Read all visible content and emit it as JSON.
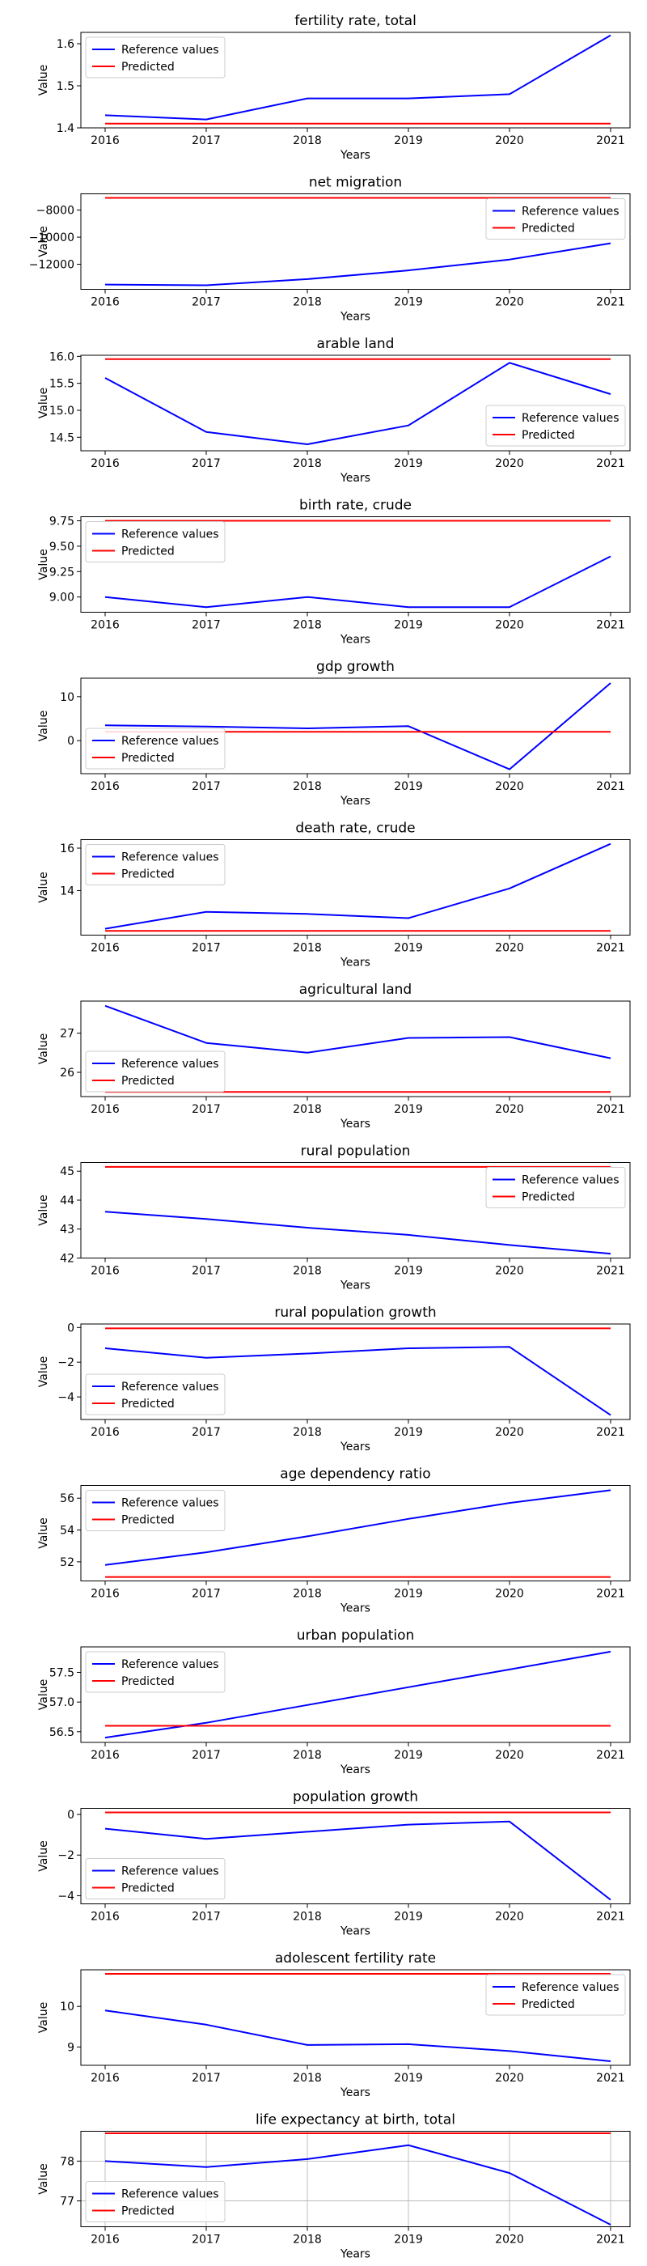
{
  "colors": {
    "reference": "#0000ff",
    "predicted": "#ff0000",
    "grid": "#b0b0b0"
  },
  "legend": {
    "reference_label": "Reference values",
    "predicted_label": "Predicted"
  },
  "chart_data": [
    {
      "type": "line",
      "title": "fertility rate, total",
      "xlabel": "Years",
      "ylabel": "Value",
      "x": [
        2016,
        2017,
        2018,
        2019,
        2020,
        2021
      ],
      "series": [
        {
          "name": "Reference values",
          "values": [
            1.43,
            1.42,
            1.47,
            1.47,
            1.48,
            1.62
          ]
        },
        {
          "name": "Predicted",
          "values": [
            1.41,
            1.41,
            1.41,
            1.41,
            1.41,
            1.41
          ]
        }
      ],
      "ylim": [
        1.4,
        1.627
      ],
      "yticks": [
        1.4,
        1.5,
        1.6
      ],
      "yticklabels": [
        "1.4",
        "1.5",
        "1.6"
      ],
      "legend_loc": "upper left",
      "grid": false
    },
    {
      "type": "line",
      "title": "net migration",
      "xlabel": "Years",
      "ylabel": "Value",
      "x": [
        2016,
        2017,
        2018,
        2019,
        2020,
        2021
      ],
      "series": [
        {
          "name": "Reference values",
          "values": [
            -13500,
            -13550,
            -13100,
            -12450,
            -11650,
            -10450
          ]
        },
        {
          "name": "Predicted",
          "values": [
            -7100,
            -7100,
            -7100,
            -7100,
            -7100,
            -7100
          ]
        }
      ],
      "ylim": [
        -13850,
        -6800
      ],
      "yticks": [
        -12000,
        -10000,
        -8000
      ],
      "yticklabels": [
        "−12000",
        "−10000",
        "−8000"
      ],
      "legend_loc": "upper right",
      "grid": false
    },
    {
      "type": "line",
      "title": "arable land",
      "xlabel": "Years",
      "ylabel": "Value",
      "x": [
        2016,
        2017,
        2018,
        2019,
        2020,
        2021
      ],
      "series": [
        {
          "name": "Reference values",
          "values": [
            15.6,
            14.6,
            14.37,
            14.72,
            15.88,
            15.3
          ]
        },
        {
          "name": "Predicted",
          "values": [
            15.95,
            15.95,
            15.95,
            15.95,
            15.95,
            15.95
          ]
        }
      ],
      "ylim": [
        14.25,
        16.02
      ],
      "yticks": [
        14.5,
        15.0,
        15.5,
        16.0
      ],
      "yticklabels": [
        "14.5",
        "15.0",
        "15.5",
        "16.0"
      ],
      "legend_loc": "lower right",
      "grid": false
    },
    {
      "type": "line",
      "title": "birth rate, crude",
      "xlabel": "Years",
      "ylabel": "Value",
      "x": [
        2016,
        2017,
        2018,
        2019,
        2020,
        2021
      ],
      "series": [
        {
          "name": "Reference values",
          "values": [
            9.0,
            8.9,
            9.0,
            8.9,
            8.9,
            9.4
          ]
        },
        {
          "name": "Predicted",
          "values": [
            9.75,
            9.75,
            9.75,
            9.75,
            9.75,
            9.75
          ]
        }
      ],
      "ylim": [
        8.85,
        9.79
      ],
      "yticks": [
        9.0,
        9.25,
        9.5,
        9.75
      ],
      "yticklabels": [
        "9.00",
        "9.25",
        "9.50",
        "9.75"
      ],
      "legend_loc": "upper left",
      "grid": false
    },
    {
      "type": "line",
      "title": "gdp growth",
      "xlabel": "Years",
      "ylabel": "Value",
      "x": [
        2016,
        2017,
        2018,
        2019,
        2020,
        2021
      ],
      "series": [
        {
          "name": "Reference values",
          "values": [
            3.5,
            3.2,
            2.8,
            3.3,
            -6.5,
            13.1
          ]
        },
        {
          "name": "Predicted",
          "values": [
            2.0,
            2.0,
            2.0,
            2.0,
            2.0,
            2.0
          ]
        }
      ],
      "ylim": [
        -7.5,
        14.2
      ],
      "yticks": [
        0,
        10
      ],
      "yticklabels": [
        "0",
        "10"
      ],
      "legend_loc": "lower left",
      "grid": false
    },
    {
      "type": "line",
      "title": "death rate, crude",
      "xlabel": "Years",
      "ylabel": "Value",
      "x": [
        2016,
        2017,
        2018,
        2019,
        2020,
        2021
      ],
      "series": [
        {
          "name": "Reference values",
          "values": [
            12.2,
            13.0,
            12.9,
            12.7,
            14.1,
            16.2
          ]
        },
        {
          "name": "Predicted",
          "values": [
            12.1,
            12.1,
            12.1,
            12.1,
            12.1,
            12.1
          ]
        }
      ],
      "ylim": [
        11.9,
        16.4
      ],
      "yticks": [
        14,
        16
      ],
      "yticklabels": [
        "14",
        "16"
      ],
      "legend_loc": "upper left",
      "grid": false
    },
    {
      "type": "line",
      "title": "agricultural land",
      "xlabel": "Years",
      "ylabel": "Value",
      "x": [
        2016,
        2017,
        2018,
        2019,
        2020,
        2021
      ],
      "series": [
        {
          "name": "Reference values",
          "values": [
            27.7,
            26.75,
            26.5,
            26.88,
            26.9,
            26.36
          ]
        },
        {
          "name": "Predicted",
          "values": [
            25.5,
            25.5,
            25.5,
            25.5,
            25.5,
            25.5
          ]
        }
      ],
      "ylim": [
        25.38,
        27.82
      ],
      "yticks": [
        26,
        27
      ],
      "yticklabels": [
        "26",
        "27"
      ],
      "legend_loc": "lower left",
      "grid": false
    },
    {
      "type": "line",
      "title": "rural population",
      "xlabel": "Years",
      "ylabel": "Value",
      "x": [
        2016,
        2017,
        2018,
        2019,
        2020,
        2021
      ],
      "series": [
        {
          "name": "Reference values",
          "values": [
            43.6,
            43.35,
            43.05,
            42.8,
            42.45,
            42.15
          ]
        },
        {
          "name": "Predicted",
          "values": [
            45.15,
            45.15,
            45.15,
            45.15,
            45.15,
            45.15
          ]
        }
      ],
      "ylim": [
        42.0,
        45.3
      ],
      "yticks": [
        42,
        43,
        44,
        45
      ],
      "yticklabels": [
        "42",
        "43",
        "44",
        "45"
      ],
      "legend_loc": "upper right",
      "grid": false
    },
    {
      "type": "line",
      "title": "rural population growth",
      "xlabel": "Years",
      "ylabel": "Value",
      "x": [
        2016,
        2017,
        2018,
        2019,
        2020,
        2021
      ],
      "series": [
        {
          "name": "Reference values",
          "values": [
            -1.2,
            -1.75,
            -1.5,
            -1.2,
            -1.12,
            -5.05
          ]
        },
        {
          "name": "Predicted",
          "values": [
            -0.05,
            -0.05,
            -0.05,
            -0.05,
            -0.05,
            -0.05
          ]
        }
      ],
      "ylim": [
        -5.3,
        0.2
      ],
      "yticks": [
        -4,
        -2,
        0
      ],
      "yticklabels": [
        "−4",
        "−2",
        "0"
      ],
      "legend_loc": "lower left",
      "grid": false
    },
    {
      "type": "line",
      "title": "age dependency ratio",
      "xlabel": "Years",
      "ylabel": "Value",
      "x": [
        2016,
        2017,
        2018,
        2019,
        2020,
        2021
      ],
      "series": [
        {
          "name": "Reference values",
          "values": [
            51.8,
            52.6,
            53.6,
            54.7,
            55.7,
            56.5
          ]
        },
        {
          "name": "Predicted",
          "values": [
            51.05,
            51.05,
            51.05,
            51.05,
            51.05,
            51.05
          ]
        }
      ],
      "ylim": [
        50.8,
        56.8
      ],
      "yticks": [
        52,
        54,
        56
      ],
      "yticklabels": [
        "52",
        "54",
        "56"
      ],
      "legend_loc": "upper left",
      "grid": false
    },
    {
      "type": "line",
      "title": "urban population",
      "xlabel": "Years",
      "ylabel": "Value",
      "x": [
        2016,
        2017,
        2018,
        2019,
        2020,
        2021
      ],
      "series": [
        {
          "name": "Reference values",
          "values": [
            56.4,
            56.65,
            56.95,
            57.25,
            57.55,
            57.85
          ]
        },
        {
          "name": "Predicted",
          "values": [
            56.6,
            56.6,
            56.6,
            56.6,
            56.6,
            56.6
          ]
        }
      ],
      "ylim": [
        56.32,
        57.93
      ],
      "yticks": [
        56.5,
        57.0,
        57.5
      ],
      "yticklabels": [
        "56.5",
        "57.0",
        "57.5"
      ],
      "legend_loc": "upper left",
      "grid": false
    },
    {
      "type": "line",
      "title": "population growth",
      "xlabel": "Years",
      "ylabel": "Value",
      "x": [
        2016,
        2017,
        2018,
        2019,
        2020,
        2021
      ],
      "series": [
        {
          "name": "Reference values",
          "values": [
            -0.7,
            -1.2,
            -0.85,
            -0.5,
            -0.35,
            -4.2
          ]
        },
        {
          "name": "Predicted",
          "values": [
            0.1,
            0.1,
            0.1,
            0.1,
            0.1,
            0.1
          ]
        }
      ],
      "ylim": [
        -4.4,
        0.3
      ],
      "yticks": [
        -4,
        -2,
        0
      ],
      "yticklabels": [
        "−4",
        "−2",
        "0"
      ],
      "legend_loc": "lower left",
      "grid": false
    },
    {
      "type": "line",
      "title": "adolescent fertility rate",
      "xlabel": "Years",
      "ylabel": "Value",
      "x": [
        2016,
        2017,
        2018,
        2019,
        2020,
        2021
      ],
      "series": [
        {
          "name": "Reference values",
          "values": [
            9.9,
            9.55,
            9.05,
            9.07,
            8.9,
            8.65
          ]
        },
        {
          "name": "Predicted",
          "values": [
            10.8,
            10.8,
            10.8,
            10.8,
            10.8,
            10.8
          ]
        }
      ],
      "ylim": [
        8.55,
        10.9
      ],
      "yticks": [
        9,
        10
      ],
      "yticklabels": [
        "9",
        "10"
      ],
      "legend_loc": "upper right",
      "grid": false
    },
    {
      "type": "line",
      "title": "life expectancy at birth, total",
      "xlabel": "Years",
      "ylabel": "Value",
      "x": [
        2016,
        2017,
        2018,
        2019,
        2020,
        2021
      ],
      "series": [
        {
          "name": "Reference values",
          "values": [
            78.0,
            77.85,
            78.05,
            78.4,
            77.7,
            76.4
          ]
        },
        {
          "name": "Predicted",
          "values": [
            78.7,
            78.7,
            78.7,
            78.7,
            78.7,
            78.7
          ]
        }
      ],
      "ylim": [
        76.35,
        78.75
      ],
      "yticks": [
        77,
        78
      ],
      "yticklabels": [
        "77",
        "78"
      ],
      "legend_loc": "lower left",
      "grid": true
    }
  ]
}
